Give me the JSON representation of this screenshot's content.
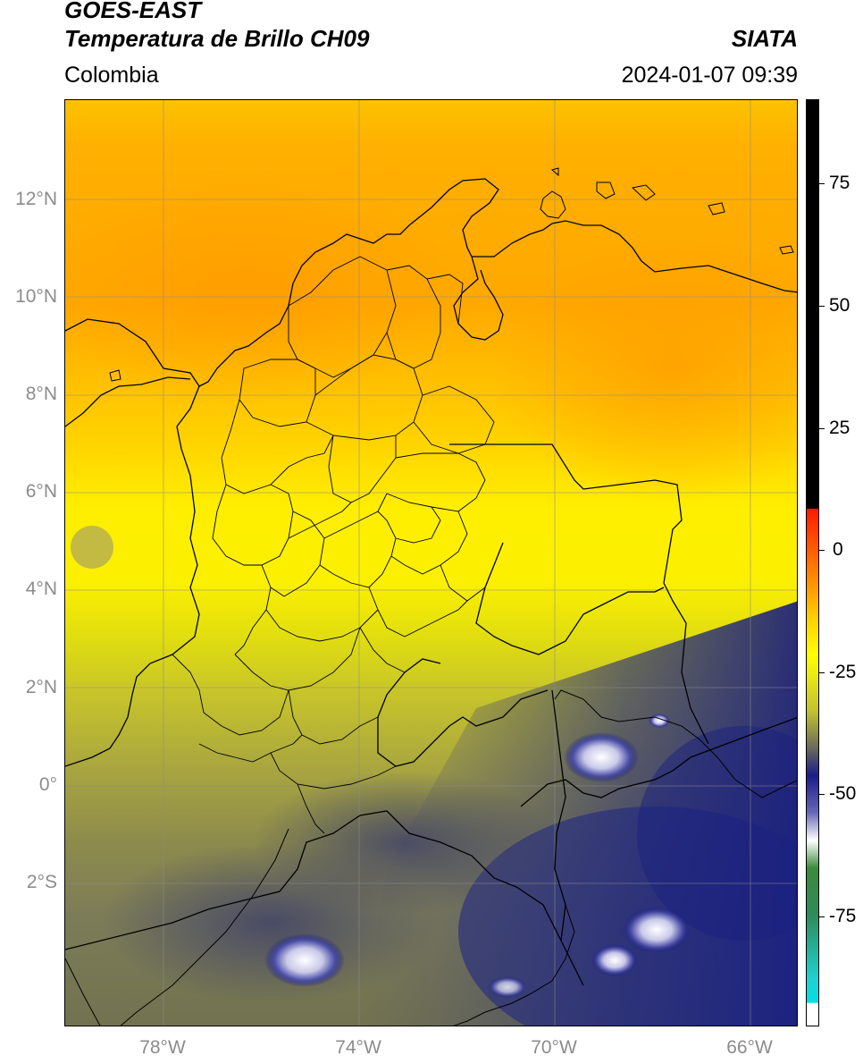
{
  "header": {
    "satellite": "GOES-EAST",
    "product": "Temperatura de Brillo CH09",
    "brand": "SIATA",
    "region": "Colombia",
    "timestamp": "2024-01-07 09:39"
  },
  "axes": {
    "lat_labels": [
      "12°N",
      "10°N",
      "8°N",
      "6°N",
      "4°N",
      "2°N",
      "0°",
      "2°S"
    ],
    "lon_labels": [
      "78°W",
      "74°W",
      "70°W",
      "66°W"
    ]
  },
  "colorbar": {
    "ticks": [
      "75",
      "50",
      "25",
      "0",
      "-25",
      "-50",
      "-75"
    ],
    "range": [
      -95,
      90
    ],
    "colors": {
      "cyan": "#1ed2d2",
      "green": "#2e8b2e",
      "white": "#ffffff",
      "navy": "#0a0f7a",
      "olive": "#8a8a3c",
      "yellow": "#ffff00",
      "orange": "#ffa500",
      "red": "#ff0000",
      "black": "#000000"
    }
  },
  "icons": {
    "coastline": "coastline-map-outline",
    "borders": "department-borders"
  }
}
